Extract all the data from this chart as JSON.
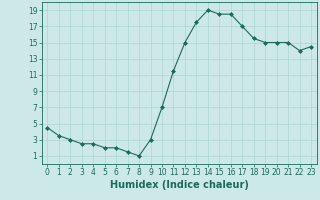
{
  "x": [
    0,
    1,
    2,
    3,
    4,
    5,
    6,
    7,
    8,
    9,
    10,
    11,
    12,
    13,
    14,
    15,
    16,
    17,
    18,
    19,
    20,
    21,
    22,
    23
  ],
  "y": [
    4.5,
    3.5,
    3.0,
    2.5,
    2.5,
    2.0,
    2.0,
    1.5,
    1.0,
    3.0,
    7.0,
    11.5,
    15.0,
    17.5,
    19.0,
    18.5,
    18.5,
    17.0,
    15.5,
    15.0,
    15.0,
    15.0,
    14.0,
    14.5
  ],
  "xlabel": "Humidex (Indice chaleur)",
  "line_color": "#1a6b5a",
  "marker_color": "#1a6b5a",
  "bg_color": "#cce8e8",
  "grid_color": "#aad4d4",
  "xlim": [
    -0.5,
    23.5
  ],
  "ylim": [
    0,
    20
  ],
  "yticks": [
    1,
    3,
    5,
    7,
    9,
    11,
    13,
    15,
    17,
    19
  ],
  "xticks": [
    0,
    1,
    2,
    3,
    4,
    5,
    6,
    7,
    8,
    9,
    10,
    11,
    12,
    13,
    14,
    15,
    16,
    17,
    18,
    19,
    20,
    21,
    22,
    23
  ],
  "tick_label_fontsize": 5.5,
  "xlabel_fontsize": 7.0
}
